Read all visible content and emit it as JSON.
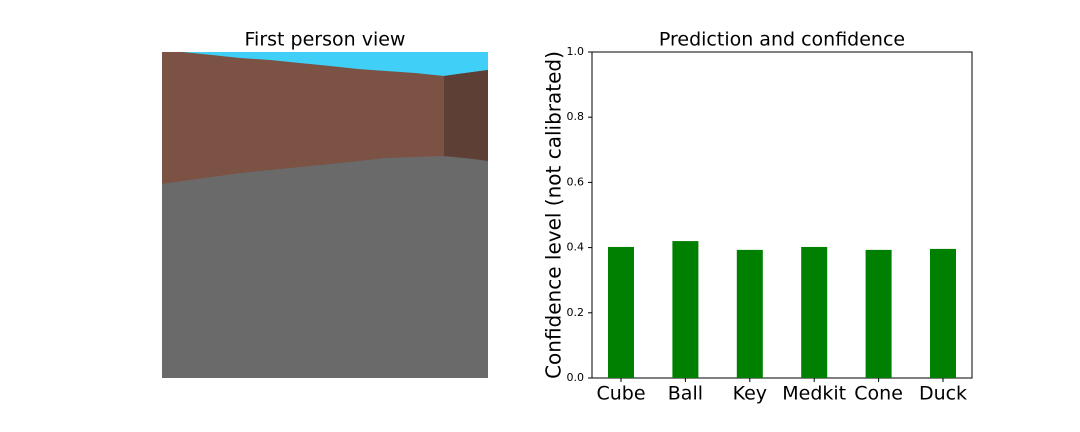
{
  "image_panel": {
    "title": "First person view"
  },
  "chart_data": {
    "type": "bar",
    "title": "Prediction and confidence",
    "y_label": "Confidence level (not calibrated)",
    "categories": [
      "Cube",
      "Ball",
      "Key",
      "Medkit",
      "Cone",
      "Duck"
    ],
    "values": [
      0.402,
      0.42,
      0.393,
      0.402,
      0.393,
      0.396
    ],
    "color": "#008000",
    "ylim": [
      0,
      1
    ],
    "yticks": [
      {
        "value": 0,
        "label": "0.0"
      },
      0.2,
      0.4,
      0.6,
      0.8,
      {
        "value": 1,
        "label": "1.0"
      }
    ],
    "grid": false
  }
}
